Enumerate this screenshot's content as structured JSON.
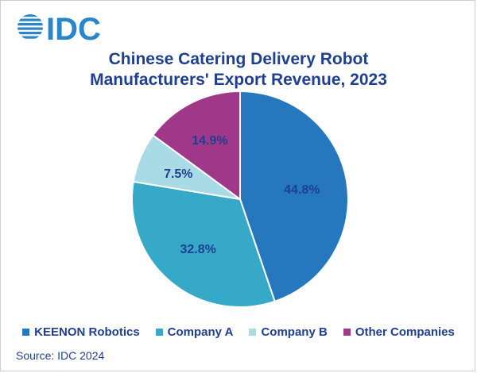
{
  "logo": {
    "text": "IDC",
    "color": "#2a86c9"
  },
  "chart_data": {
    "type": "pie",
    "title_lines": [
      "Chinese Catering Delivery Robot",
      "Manufacturers' Export Revenue, 2023"
    ],
    "title": "Chinese Catering Delivery Robot Manufacturers' Export Revenue, 2023",
    "slices": [
      {
        "name": "KEENON Robotics",
        "value": 44.8,
        "label": "44.8%",
        "color": "#2577be"
      },
      {
        "name": "Company A",
        "value": 32.8,
        "label": "32.8%",
        "color": "#35a9c7"
      },
      {
        "name": "Company B",
        "value": 7.5,
        "label": "7.5%",
        "color": "#a8dbe5"
      },
      {
        "name": "Other Companies",
        "value": 14.9,
        "label": "14.9%",
        "color": "#a0388a"
      }
    ],
    "legend_position": "bottom",
    "label_color": "#1f3f8f"
  },
  "source": "Source: IDC 2024"
}
